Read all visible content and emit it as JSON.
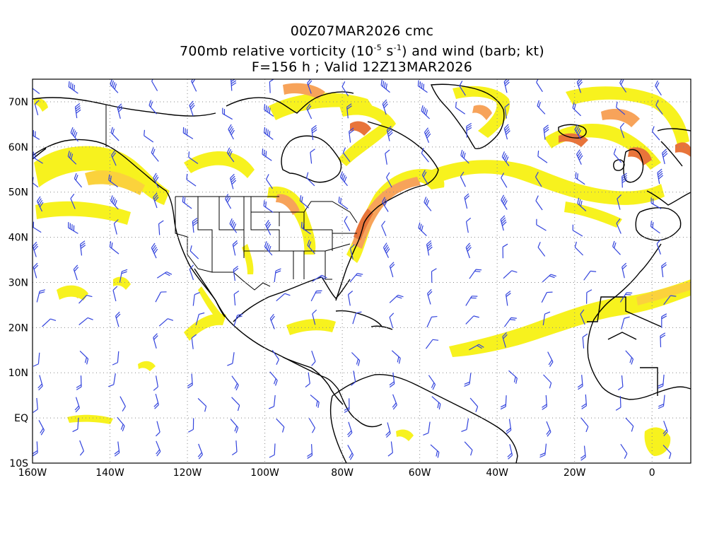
{
  "title": {
    "line1": "00Z07MAR2026 cmc",
    "line2": "700mb relative vorticity (10",
    "line2_exp1": "-5",
    "line2_mid": " s",
    "line2_exp2": "-1",
    "line2_tail": ") and wind (barb; kt)",
    "line3": "F=156 h ; Valid 12Z13MAR2026"
  },
  "axes": {
    "lon_labels": [
      "160W",
      "140W",
      "120W",
      "100W",
      "80W",
      "60W",
      "40W",
      "20W",
      "0"
    ],
    "lat_labels": [
      "70N",
      "60N",
      "50N",
      "40N",
      "30N",
      "20N",
      "10N",
      "EQ",
      "10S"
    ],
    "lon_values": [
      -160,
      -140,
      -120,
      -100,
      -80,
      -60,
      -40,
      -20,
      0
    ],
    "lat_values": [
      70,
      60,
      50,
      40,
      30,
      20,
      10,
      0,
      -10
    ],
    "lon_range": [
      -160,
      10
    ],
    "lat_range": [
      -10,
      75
    ],
    "grid": "dotted"
  },
  "colors": {
    "shade_light": "#f7f21e",
    "shade_mid": "#fbd23c",
    "shade_orange": "#f7a35a",
    "shade_red": "#e8743a",
    "barb": "#3344dd",
    "coast": "#000000",
    "grid": "#888888"
  }
}
